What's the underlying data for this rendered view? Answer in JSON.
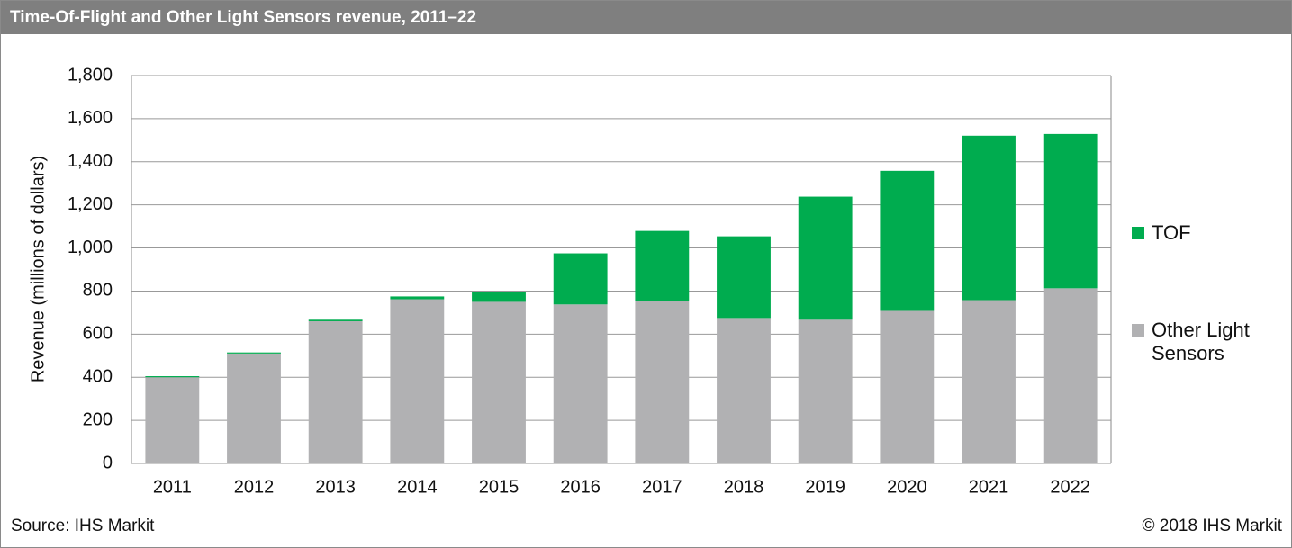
{
  "chart_data": {
    "type": "stacked_bar",
    "title": "Time-Of-Flight and Other Light Sensors revenue, 2011–22",
    "y_label": "Revenue (millions of dollars)",
    "source": "Source: IHS Markit",
    "copyright": "© 2018 IHS Markit",
    "categories": [
      "2011",
      "2012",
      "2013",
      "2014",
      "2015",
      "2016",
      "2017",
      "2018",
      "2019",
      "2020",
      "2021",
      "2022"
    ],
    "series": [
      {
        "name": "Other Light Sensors",
        "color": "#b1b1b3",
        "values": [
          400,
          510,
          660,
          762,
          750,
          738,
          754,
          675,
          667,
          708,
          758,
          813
        ]
      },
      {
        "name": "TOF",
        "color": "#00ac4f",
        "values": [
          5,
          5,
          7,
          13,
          46,
          237,
          325,
          379,
          571,
          650,
          763,
          716
        ]
      }
    ],
    "ylim": [
      0,
      1800
    ],
    "yticks": [
      0,
      200,
      400,
      600,
      800,
      {
        "value": 1000,
        "label": "1,000"
      },
      {
        "value": 1200,
        "label": "1,200"
      },
      {
        "value": 1400,
        "label": "1,400"
      },
      {
        "value": 1600,
        "label": "1,600"
      },
      {
        "value": 1800,
        "label": "1,800"
      }
    ],
    "grid": true
  }
}
